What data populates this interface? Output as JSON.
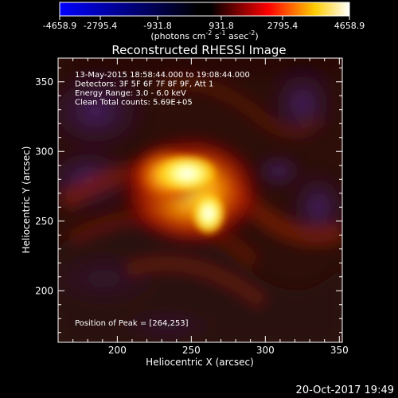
{
  "chart_data": {
    "type": "heatmap",
    "title": "Reconstructed RHESSI Image",
    "xlabel": "Heliocentric X (arcsec)",
    "ylabel": "Heliocentric Y (arcsec)",
    "xlim": [
      160,
      352
    ],
    "ylim": [
      163,
      367
    ],
    "xticks": [
      200,
      250,
      300,
      350
    ],
    "yticks": [
      200,
      250,
      300,
      350
    ],
    "colorbar": {
      "ticks": [
        "-4658.9",
        "-2795.4",
        "-931.8",
        "931.8",
        "2795.4",
        "4658.9"
      ],
      "range": [
        -4658.9,
        4658.9
      ],
      "unit_text": "(photons cm",
      "unit_exp1": "-2",
      "unit_mid": " s",
      "unit_exp2": "-1",
      "unit_end": " asec",
      "unit_exp3": "-2",
      "unit_close": ")",
      "colors": [
        "#0000ff",
        "#ff0000",
        "#ffff00",
        "#ffffff"
      ]
    },
    "annotations": [
      "13-May-2015 18:58:44.000 to 19:08:44.000",
      "Detectors: 3F 5F 6F 7F 8F 9F, Att 1",
      "Energy Range: 3.0 - 6.0 keV",
      "Clean     Total counts: 5.69E+05"
    ],
    "peak_label": "Position of Peak = [264,253]",
    "peak": [
      264,
      253
    ],
    "sources": [
      {
        "x": 255,
        "y": 283,
        "value": 4658.9
      },
      {
        "x": 264,
        "y": 253,
        "value": 4658.9
      }
    ]
  },
  "footer": {
    "timestamp": "20-Oct-2017 19:49"
  }
}
